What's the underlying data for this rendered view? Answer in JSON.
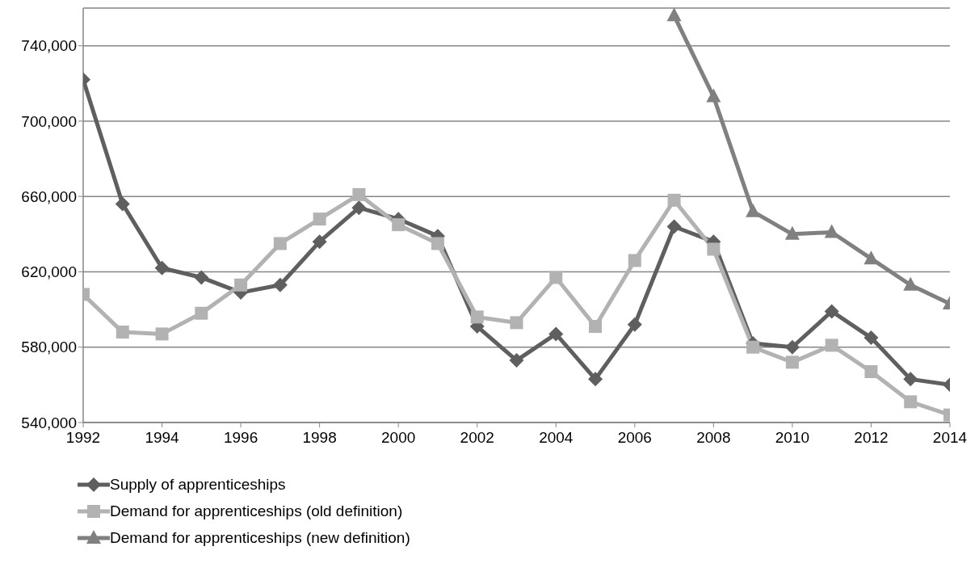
{
  "chart_data": {
    "type": "line",
    "x": [
      1992,
      1993,
      1994,
      1995,
      1996,
      1997,
      1998,
      1999,
      2000,
      2001,
      2002,
      2003,
      2004,
      2005,
      2006,
      2007,
      2008,
      2009,
      2010,
      2011,
      2012,
      2013,
      2014
    ],
    "series": [
      {
        "name": "Supply of apprenticeships",
        "color": "#5f5f5f",
        "marker": "diamond",
        "values": [
          722000,
          656000,
          622000,
          617000,
          609000,
          613000,
          636000,
          654000,
          648000,
          639000,
          591000,
          573000,
          587000,
          563000,
          592000,
          644000,
          636000,
          582000,
          580000,
          599000,
          585000,
          563000,
          560000
        ]
      },
      {
        "name": "Demand for apprenticeships (old definition)",
        "color": "#b2b2b2",
        "marker": "square",
        "values": [
          608000,
          588000,
          587000,
          598000,
          613000,
          635000,
          648000,
          661000,
          645000,
          635000,
          596000,
          593000,
          617000,
          591000,
          626000,
          658000,
          632000,
          580000,
          572000,
          581000,
          567000,
          551000,
          544000
        ]
      },
      {
        "name": "Demand for apprenticeships (new definition)",
        "color": "#808080",
        "marker": "triangle",
        "values": [
          null,
          null,
          null,
          null,
          null,
          null,
          null,
          null,
          null,
          null,
          null,
          null,
          null,
          null,
          null,
          756000,
          713000,
          652000,
          640000,
          641000,
          627000,
          613000,
          603000
        ]
      }
    ],
    "xlim": [
      1992,
      2014
    ],
    "xticks": [
      1992,
      1994,
      1996,
      1998,
      2000,
      2002,
      2004,
      2006,
      2008,
      2010,
      2012,
      2014
    ],
    "ylim": [
      540000,
      760000
    ],
    "yticks": [
      {
        "value": 540000,
        "label": "540,000"
      },
      {
        "value": 580000,
        "label": "580,000"
      },
      {
        "value": 620000,
        "label": "620,000"
      },
      {
        "value": 660000,
        "label": "660,000"
      },
      {
        "value": 700000,
        "label": "700,000"
      },
      {
        "value": 740000,
        "label": "740,000"
      }
    ],
    "grid": "y",
    "legend": "bottom",
    "line_style": "solid"
  }
}
